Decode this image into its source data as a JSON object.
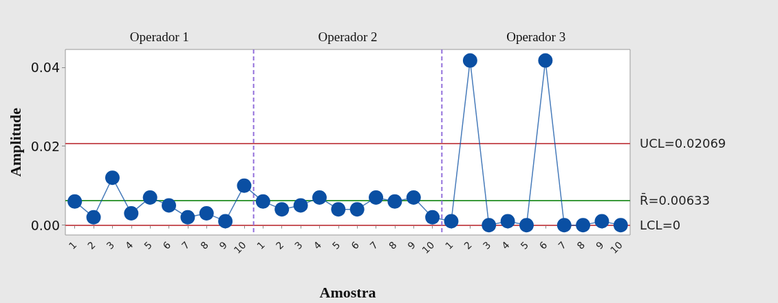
{
  "chart_data": {
    "type": "line",
    "xlabel": "Amostra",
    "ylabel": "Amplitude",
    "categories": [
      "1",
      "2",
      "3",
      "4",
      "5",
      "6",
      "7",
      "8",
      "9",
      "10",
      "1",
      "2",
      "3",
      "4",
      "5",
      "6",
      "7",
      "8",
      "9",
      "10",
      "1",
      "2",
      "3",
      "4",
      "5",
      "6",
      "7",
      "8",
      "9",
      "10"
    ],
    "ylim": [
      -0.0025,
      0.0445
    ],
    "yticks": [
      {
        "value": 0,
        "label": "0.00"
      },
      0.02,
      0.04
    ],
    "series": [
      {
        "color": "#0a4fa3",
        "values": [
          0.006,
          0.002,
          0.012,
          0.003,
          0.007,
          0.005,
          0.002,
          0.003,
          0.001,
          0.01,
          0.006,
          0.004,
          0.005,
          0.007,
          0.004,
          0.004,
          0.007,
          0.006,
          0.007,
          0.002,
          0.001,
          0.0417,
          0,
          0.001,
          0,
          0.0417,
          0,
          0,
          0.001,
          0
        ]
      }
    ],
    "ref_lines": [
      {
        "axis": "y",
        "value": 0.02069,
        "label": "UCL=0.02069",
        "color": "#c8555a",
        "line_style": "solid"
      },
      {
        "axis": "y",
        "value": 0.00633,
        "label": "R̄=0.00633",
        "color": "#3a9a3a",
        "line_style": "solid"
      },
      {
        "axis": "y",
        "value": 0,
        "label": "LCL=0",
        "color": "#c8555a",
        "line_style": "solid"
      }
    ],
    "annotations": [
      "Operador 1",
      "Operador 2",
      "Operador 3"
    ],
    "grid": false,
    "marker": "circle",
    "line_style": "solid"
  }
}
